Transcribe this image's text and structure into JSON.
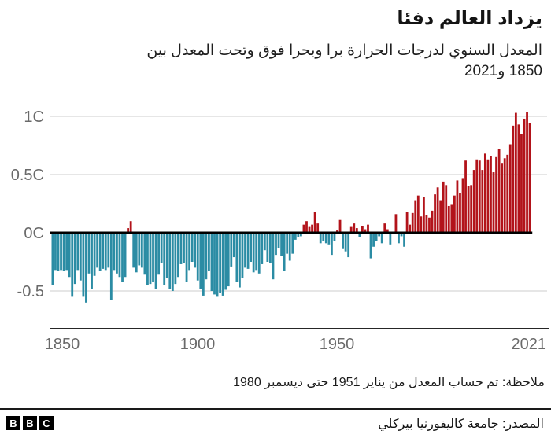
{
  "chart_data": {
    "type": "bar",
    "title": "يزداد العالم دفئا",
    "subtitle_line1": "المعدل السنوي لدرجات الحرارة برا وبحرا فوق وتحت المعدل بين",
    "subtitle_line2": "1850 و2021",
    "unit": "C",
    "year_start": 1850,
    "year_end": 2021,
    "values": [
      -0.45,
      -0.32,
      -0.33,
      -0.32,
      -0.33,
      -0.32,
      -0.38,
      -0.55,
      -0.44,
      -0.32,
      -0.41,
      -0.55,
      -0.6,
      -0.35,
      -0.48,
      -0.37,
      -0.3,
      -0.33,
      -0.31,
      -0.32,
      -0.3,
      -0.58,
      -0.32,
      -0.35,
      -0.38,
      -0.42,
      -0.38,
      0.04,
      0.1,
      -0.3,
      -0.34,
      -0.28,
      -0.3,
      -0.36,
      -0.45,
      -0.44,
      -0.42,
      -0.48,
      -0.36,
      -0.26,
      -0.45,
      -0.39,
      -0.48,
      -0.5,
      -0.44,
      -0.38,
      -0.27,
      -0.26,
      -0.42,
      -0.32,
      -0.25,
      -0.3,
      -0.41,
      -0.48,
      -0.54,
      -0.4,
      -0.33,
      -0.5,
      -0.53,
      -0.55,
      -0.52,
      -0.54,
      -0.49,
      -0.46,
      -0.29,
      -0.21,
      -0.42,
      -0.47,
      -0.39,
      -0.3,
      -0.31,
      -0.25,
      -0.34,
      -0.32,
      -0.35,
      -0.27,
      -0.15,
      -0.25,
      -0.26,
      -0.4,
      -0.19,
      -0.13,
      -0.2,
      -0.33,
      -0.18,
      -0.24,
      -0.18,
      -0.06,
      -0.04,
      -0.03,
      0.07,
      0.1,
      0.05,
      0.07,
      0.18,
      0.08,
      -0.09,
      -0.07,
      -0.09,
      -0.1,
      -0.19,
      -0.07,
      0.02,
      0.11,
      -0.14,
      -0.16,
      -0.21,
      0.05,
      0.08,
      0.04,
      -0.04,
      0.06,
      0.03,
      0.07,
      -0.22,
      -0.12,
      -0.07,
      -0.03,
      -0.09,
      0.08,
      0.03,
      -0.1,
      0.01,
      0.16,
      -0.09,
      -0.03,
      -0.12,
      0.18,
      0.07,
      0.17,
      0.28,
      0.32,
      0.14,
      0.31,
      0.15,
      0.13,
      0.19,
      0.33,
      0.39,
      0.28,
      0.44,
      0.41,
      0.23,
      0.24,
      0.32,
      0.45,
      0.34,
      0.47,
      0.62,
      0.4,
      0.41,
      0.54,
      0.63,
      0.62,
      0.54,
      0.68,
      0.63,
      0.66,
      0.52,
      0.65,
      0.72,
      0.6,
      0.64,
      0.67,
      0.76,
      0.92,
      1.03,
      0.93,
      0.85,
      0.98,
      1.04,
      0.94
    ],
    "y_ticks": [
      {
        "label": "1C",
        "value": 1
      },
      {
        "label": "0.5C",
        "value": 0.5
      },
      {
        "label": "0C",
        "value": 0
      },
      {
        "label": "-0.5",
        "value": -0.5
      }
    ],
    "x_ticks": [
      {
        "label": "1850",
        "year": 1850
      },
      {
        "label": "1900",
        "year": 1900
      },
      {
        "label": "1950",
        "year": 1950
      },
      {
        "label": "2021",
        "year": 2021
      }
    ],
    "ylim": [
      -0.65,
      1.1
    ],
    "grid": "horizontal",
    "legend": "none",
    "colors": {
      "above_average": "#B2131A",
      "below_average": "#2B8CA4",
      "gridline": "#DDDDDD",
      "zero_line": "#000000",
      "axis_line": "#262626",
      "tick_label": "#6A6A6A"
    }
  },
  "note": {
    "text": "ملاحظة: تم حساب المعدل من يناير 1951 حتى ديسمبر 1980"
  },
  "footer": {
    "source": "المصدر: جامعة كاليفورنيا بيركلي",
    "logo_letters": [
      "B",
      "B",
      "C"
    ]
  }
}
